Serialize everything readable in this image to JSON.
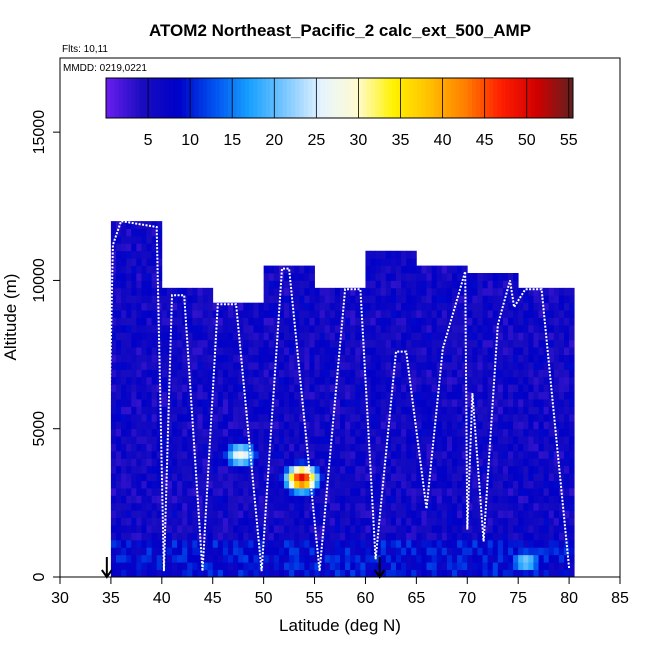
{
  "chart_data": {
    "type": "heatmap",
    "title": "ATOM2 Northeast_Pacific_2 calc_ext_500_AMP",
    "annotations": [
      "Flts: 10,11",
      "MMDD: 0219,0221"
    ],
    "xlabel": "Latitude (deg N)",
    "ylabel": "Altitude (m)",
    "xlim": [
      30,
      85
    ],
    "ylim": [
      0,
      17500
    ],
    "xticks": [
      30,
      35,
      40,
      45,
      50,
      55,
      60,
      65,
      70,
      75,
      80,
      85
    ],
    "yticks": [
      0,
      5000,
      10000,
      15000
    ],
    "colorbar": {
      "min": 0,
      "max": 55.5,
      "ticks": [
        5,
        10,
        15,
        20,
        25,
        30,
        35,
        40,
        45,
        50,
        55
      ],
      "stops": [
        "#6a1ef0",
        "#1a0dc0",
        "#0000c8",
        "#0050f0",
        "#18a0ff",
        "#7cc8ff",
        "#e6f4ff",
        "#fffbd0",
        "#fff200",
        "#ffc000",
        "#ff7e00",
        "#ff1e00",
        "#d00000",
        "#602020"
      ]
    },
    "profile_columns": [
      {
        "lat_range": [
          35.0,
          40.0
        ],
        "alt_top": 12000
      },
      {
        "lat_range": [
          40.0,
          45.0
        ],
        "alt_top": 9600
      },
      {
        "lat_range": [
          45.0,
          50.0
        ],
        "alt_top": 9200
      },
      {
        "lat_range": [
          50.0,
          55.0
        ],
        "alt_top": 10400
      },
      {
        "lat_range": [
          55.0,
          60.0
        ],
        "alt_top": 9700
      },
      {
        "lat_range": [
          60.0,
          65.0
        ],
        "alt_top": 10800
      },
      {
        "lat_range": [
          65.0,
          70.0
        ],
        "alt_top": 10500
      },
      {
        "lat_range": [
          70.0,
          75.0
        ],
        "alt_top": 10200
      },
      {
        "lat_range": [
          75.0,
          80.5
        ],
        "alt_top": 9700
      }
    ],
    "hotspots": [
      {
        "lat": 47.5,
        "alt": 4000,
        "value": 28
      },
      {
        "lat": 53.5,
        "alt": 3200,
        "value": 50
      },
      {
        "lat": 75.5,
        "alt": 400,
        "value": 22
      }
    ],
    "flight_track": [
      [
        34.6,
        1200
      ],
      [
        35.2,
        11200
      ],
      [
        36.0,
        12000
      ],
      [
        39.5,
        11800
      ],
      [
        40.2,
        200
      ],
      [
        41.0,
        9500
      ],
      [
        42.2,
        9500
      ],
      [
        44.0,
        200
      ],
      [
        45.5,
        9200
      ],
      [
        47.3,
        9200
      ],
      [
        49.8,
        200
      ],
      [
        51.8,
        10400
      ],
      [
        52.5,
        10400
      ],
      [
        55.5,
        200
      ],
      [
        58.0,
        9700
      ],
      [
        59.5,
        9700
      ],
      [
        61.0,
        600
      ],
      [
        63.0,
        7600
      ],
      [
        64.0,
        7600
      ],
      [
        66.0,
        2300
      ],
      [
        67.6,
        7700
      ],
      [
        69.8,
        10300
      ],
      [
        70.0,
        1600
      ],
      [
        70.5,
        6200
      ],
      [
        71.6,
        1200
      ],
      [
        73.0,
        8500
      ],
      [
        74.2,
        10000
      ],
      [
        74.6,
        9100
      ],
      [
        75.7,
        9700
      ],
      [
        77.3,
        9700
      ],
      [
        80.0,
        300
      ]
    ],
    "arrows": [
      {
        "lat": 34.6
      },
      {
        "lat": 61.4
      }
    ]
  }
}
